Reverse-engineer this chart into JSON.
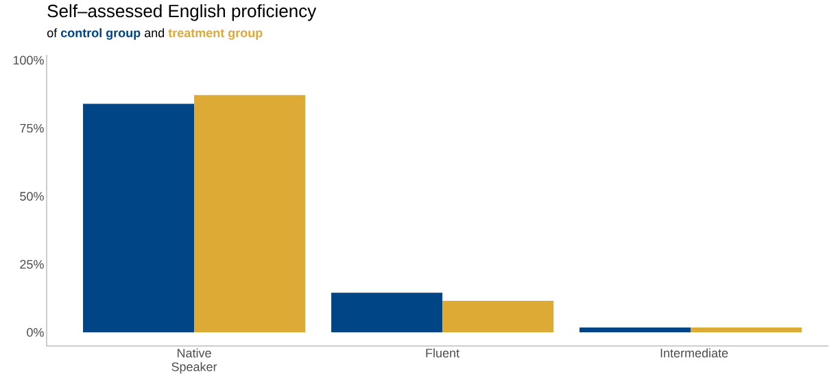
{
  "chart_data": {
    "type": "bar",
    "title": "Self–assessed English proficiency",
    "subtitle": "of",
    "annotations": [
      "and"
    ],
    "categories": [
      "Native Speaker",
      "Fluent",
      "Intermediate"
    ],
    "series": [
      {
        "name": "control group",
        "color": "#004586",
        "values": [
          84,
          14.6,
          1.8
        ]
      },
      {
        "name": "treatment group",
        "color": "#ddaa36",
        "values": [
          87.2,
          11.6,
          1.8
        ]
      }
    ],
    "ylim": [
      -5,
      102
    ],
    "yticks": [
      {
        "value": 0,
        "label": "0%"
      },
      {
        "value": 25,
        "label": "25%"
      },
      {
        "value": 50,
        "label": "50%"
      },
      {
        "value": 75,
        "label": "75%"
      },
      {
        "value": 100,
        "label": "100%"
      }
    ],
    "legend": "top left"
  }
}
